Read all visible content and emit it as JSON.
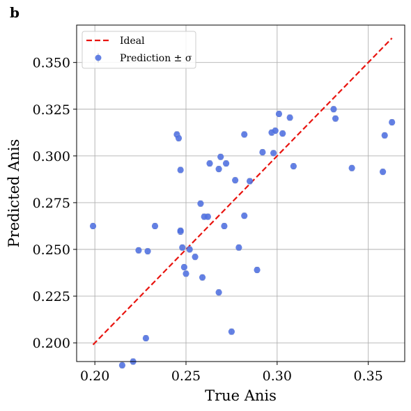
{
  "panel_label": "b",
  "chart_data": {
    "type": "scatter",
    "xlabel": "True Anis",
    "ylabel": "Predicted Anis",
    "xlim": [
      0.19,
      0.37
    ],
    "ylim": [
      0.19,
      0.37
    ],
    "xticks": [
      0.2,
      0.25,
      0.3,
      0.35
    ],
    "yticks": [
      0.2,
      0.225,
      0.25,
      0.275,
      0.3,
      0.325,
      0.35
    ],
    "xtick_labels": [
      "0.20",
      "0.25",
      "0.30",
      "0.35"
    ],
    "ytick_labels": [
      "0.200",
      "0.225",
      "0.250",
      "0.275",
      "0.300",
      "0.325",
      "0.350"
    ],
    "grid": true,
    "legend_position": "top-left",
    "legend": [
      {
        "label": "Ideal",
        "style": "dashed-line",
        "color": "#e8140f"
      },
      {
        "label": "Prediction ± σ",
        "style": "marker",
        "color": "#4e6fe0"
      }
    ],
    "ideal_line": {
      "x": [
        0.199,
        0.363
      ],
      "y": [
        0.199,
        0.363
      ]
    },
    "series": [
      {
        "name": "Prediction ± σ",
        "color": "#4e6fe0",
        "x": [
          0.199,
          0.215,
          0.221,
          0.224,
          0.228,
          0.229,
          0.233,
          0.245,
          0.246,
          0.247,
          0.247,
          0.247,
          0.248,
          0.249,
          0.25,
          0.252,
          0.255,
          0.258,
          0.259,
          0.26,
          0.262,
          0.263,
          0.268,
          0.268,
          0.269,
          0.271,
          0.272,
          0.275,
          0.277,
          0.279,
          0.282,
          0.282,
          0.285,
          0.289,
          0.292,
          0.297,
          0.298,
          0.299,
          0.301,
          0.303,
          0.307,
          0.309,
          0.331,
          0.332,
          0.341,
          0.358,
          0.359,
          0.363
        ],
        "y": [
          0.2625,
          0.188,
          0.19,
          0.2495,
          0.2025,
          0.249,
          0.2625,
          0.3115,
          0.3095,
          0.2595,
          0.26,
          0.2925,
          0.251,
          0.2405,
          0.237,
          0.25,
          0.246,
          0.2745,
          0.235,
          0.2675,
          0.2675,
          0.296,
          0.293,
          0.227,
          0.2995,
          0.2625,
          0.296,
          0.206,
          0.287,
          0.251,
          0.3115,
          0.268,
          0.2865,
          0.239,
          0.302,
          0.3125,
          0.3015,
          0.3135,
          0.3225,
          0.312,
          0.3205,
          0.2945,
          0.325,
          0.32,
          0.2935,
          0.2915,
          0.311,
          0.318
        ],
        "sigma": [
          0.0015,
          0.0015,
          0.0015,
          0.0015,
          0.0015,
          0.0015,
          0.0015,
          0.0015,
          0.0015,
          0.0015,
          0.0015,
          0.0015,
          0.0015,
          0.0015,
          0.0015,
          0.0015,
          0.0015,
          0.0015,
          0.0015,
          0.0015,
          0.0015,
          0.0015,
          0.0015,
          0.0015,
          0.0015,
          0.0015,
          0.0015,
          0.0015,
          0.0015,
          0.0015,
          0.0015,
          0.0015,
          0.0015,
          0.0015,
          0.0015,
          0.0015,
          0.0015,
          0.0015,
          0.0015,
          0.0015,
          0.0015,
          0.0015,
          0.0015,
          0.0015,
          0.0015,
          0.0015,
          0.0015,
          0.0015
        ]
      }
    ]
  }
}
